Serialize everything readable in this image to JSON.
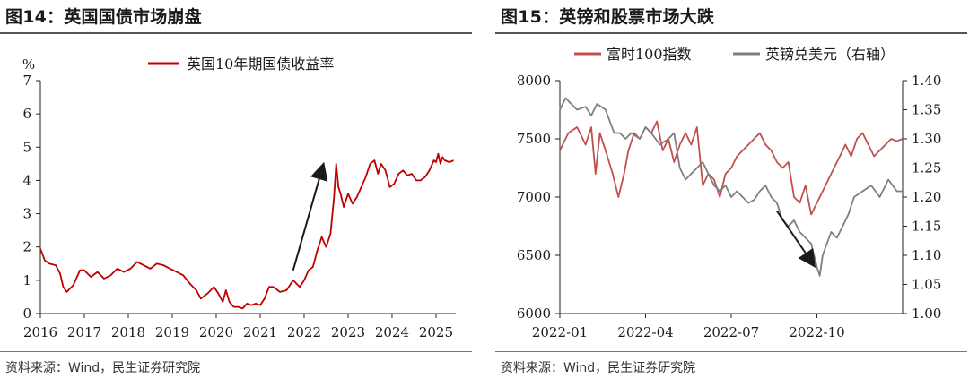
{
  "charts": [
    {
      "title": "图14：英国国债市场崩盘",
      "source": "资料来源：Wind，民生证券研究院"
    },
    {
      "title": "图15：英镑和股票市场大跌",
      "source": "资料来源：Wind，民生证券研究院"
    }
  ],
  "chart_data": [
    {
      "type": "line",
      "title": "图14：英国国债市场崩盘",
      "ylabel": "%",
      "ylim": [
        0,
        7
      ],
      "yticks": [
        "0",
        "1",
        "2",
        "3",
        "4",
        "5",
        "6",
        "7"
      ],
      "xlim": [
        2016.0,
        2025.45
      ],
      "xticks": [
        "2016",
        "2017",
        "2018",
        "2019",
        "2020",
        "2021",
        "2022",
        "2023",
        "2024",
        "2025"
      ],
      "legend_position": "top-center",
      "series": [
        {
          "name": "英国10年期国债收益率",
          "color": "#c00000",
          "x": [
            2016.0,
            2016.1,
            2016.2,
            2016.35,
            2016.45,
            2016.52,
            2016.6,
            2016.75,
            2016.9,
            2017.0,
            2017.15,
            2017.3,
            2017.45,
            2017.6,
            2017.75,
            2017.9,
            2018.05,
            2018.2,
            2018.35,
            2018.5,
            2018.65,
            2018.8,
            2018.95,
            2019.1,
            2019.25,
            2019.4,
            2019.55,
            2019.65,
            2019.8,
            2019.95,
            2020.05,
            2020.15,
            2020.22,
            2020.3,
            2020.4,
            2020.5,
            2020.6,
            2020.7,
            2020.8,
            2020.9,
            2021.0,
            2021.1,
            2021.2,
            2021.3,
            2021.45,
            2021.6,
            2021.75,
            2021.9,
            2022.0,
            2022.1,
            2022.2,
            2022.3,
            2022.4,
            2022.5,
            2022.6,
            2022.68,
            2022.73,
            2022.78,
            2022.83,
            2022.9,
            2023.0,
            2023.1,
            2023.2,
            2023.3,
            2023.4,
            2023.5,
            2023.6,
            2023.68,
            2023.75,
            2023.85,
            2023.95,
            2024.05,
            2024.15,
            2024.25,
            2024.35,
            2024.45,
            2024.55,
            2024.65,
            2024.75,
            2024.85,
            2024.95,
            2025.0,
            2025.05,
            2025.1,
            2025.15,
            2025.2,
            2025.3,
            2025.4
          ],
          "values": [
            1.95,
            1.6,
            1.5,
            1.45,
            1.2,
            0.8,
            0.65,
            0.85,
            1.3,
            1.3,
            1.1,
            1.25,
            1.05,
            1.15,
            1.35,
            1.25,
            1.35,
            1.55,
            1.45,
            1.35,
            1.5,
            1.45,
            1.35,
            1.25,
            1.15,
            0.9,
            0.7,
            0.45,
            0.6,
            0.8,
            0.6,
            0.35,
            0.7,
            0.35,
            0.2,
            0.2,
            0.15,
            0.3,
            0.25,
            0.3,
            0.25,
            0.45,
            0.8,
            0.8,
            0.65,
            0.7,
            1.0,
            0.8,
            1.0,
            1.3,
            1.4,
            1.9,
            2.3,
            2.0,
            2.4,
            3.5,
            4.5,
            3.8,
            3.6,
            3.2,
            3.6,
            3.3,
            3.5,
            3.8,
            4.1,
            4.5,
            4.6,
            4.2,
            4.5,
            4.3,
            3.8,
            3.9,
            4.2,
            4.3,
            4.15,
            4.2,
            4.0,
            4.0,
            4.1,
            4.3,
            4.6,
            4.55,
            4.8,
            4.5,
            4.7,
            4.6,
            4.55,
            4.6
          ]
        }
      ]
    },
    {
      "type": "line",
      "title": "图15：英镑和股票市场大跌",
      "ylim": [
        6000,
        8000
      ],
      "yticks": [
        "6000",
        "6500",
        "7000",
        "7500",
        "8000"
      ],
      "y2lim": [
        1.0,
        1.4
      ],
      "y2ticks": [
        "1.00",
        "1.05",
        "1.10",
        "1.15",
        "1.20",
        "1.25",
        "1.30",
        "1.35",
        "1.40"
      ],
      "x_month_range": [
        0,
        12
      ],
      "xticks": [
        "2022-01",
        "2022-04",
        "2022-07",
        "2022-10"
      ],
      "legend_position": "top-center",
      "series": [
        {
          "name": "富时100指数",
          "axis": "left",
          "color": "#c0504d",
          "x": [
            0,
            0.3,
            0.6,
            0.9,
            1.1,
            1.25,
            1.4,
            1.6,
            1.85,
            2.05,
            2.15,
            2.25,
            2.4,
            2.6,
            2.8,
            3.0,
            3.2,
            3.4,
            3.6,
            3.8,
            4.0,
            4.2,
            4.4,
            4.6,
            4.8,
            5.0,
            5.2,
            5.4,
            5.6,
            5.8,
            6.0,
            6.2,
            6.4,
            6.6,
            6.8,
            7.0,
            7.2,
            7.4,
            7.6,
            7.8,
            8.0,
            8.2,
            8.4,
            8.6,
            8.8,
            9.0,
            9.2,
            9.4,
            9.6,
            9.8,
            10.0,
            10.2,
            10.4,
            10.6,
            10.8,
            11.0,
            11.2,
            11.4,
            11.6,
            11.8,
            12.0
          ],
          "values": [
            7400,
            7550,
            7600,
            7450,
            7600,
            7200,
            7550,
            7400,
            7200,
            7000,
            7100,
            7200,
            7400,
            7550,
            7500,
            7600,
            7550,
            7650,
            7400,
            7500,
            7300,
            7450,
            7550,
            7450,
            7600,
            7100,
            7200,
            7150,
            7000,
            7200,
            7250,
            7350,
            7400,
            7450,
            7500,
            7550,
            7450,
            7400,
            7300,
            7250,
            7300,
            7000,
            6950,
            7100,
            6850,
            6950,
            7050,
            7150,
            7250,
            7350,
            7450,
            7350,
            7500,
            7550,
            7450,
            7350,
            7400,
            7450,
            7500,
            7480,
            7500
          ]
        },
        {
          "name": "英镑兑美元（右轴）",
          "axis": "right",
          "color": "#7f7f7f",
          "x": [
            0,
            0.2,
            0.4,
            0.6,
            0.9,
            1.1,
            1.3,
            1.6,
            1.9,
            2.1,
            2.3,
            2.5,
            2.8,
            3.0,
            3.2,
            3.5,
            3.8,
            4.0,
            4.2,
            4.4,
            4.6,
            4.8,
            5.0,
            5.2,
            5.4,
            5.6,
            5.8,
            6.0,
            6.2,
            6.4,
            6.6,
            6.8,
            7.0,
            7.2,
            7.4,
            7.6,
            7.8,
            8.0,
            8.2,
            8.4,
            8.6,
            8.8,
            9.0,
            9.1,
            9.2,
            9.35,
            9.5,
            9.7,
            9.9,
            10.1,
            10.3,
            10.6,
            10.9,
            11.2,
            11.5,
            11.8,
            12.0
          ],
          "values": [
            1.35,
            1.37,
            1.36,
            1.35,
            1.355,
            1.34,
            1.36,
            1.35,
            1.31,
            1.31,
            1.3,
            1.31,
            1.3,
            1.32,
            1.31,
            1.29,
            1.3,
            1.31,
            1.25,
            1.23,
            1.24,
            1.25,
            1.26,
            1.24,
            1.22,
            1.21,
            1.22,
            1.2,
            1.21,
            1.2,
            1.19,
            1.195,
            1.21,
            1.22,
            1.2,
            1.19,
            1.16,
            1.15,
            1.16,
            1.14,
            1.13,
            1.12,
            1.08,
            1.065,
            1.1,
            1.12,
            1.14,
            1.13,
            1.15,
            1.17,
            1.2,
            1.21,
            1.22,
            1.2,
            1.23,
            1.21,
            1.21
          ]
        }
      ]
    }
  ]
}
